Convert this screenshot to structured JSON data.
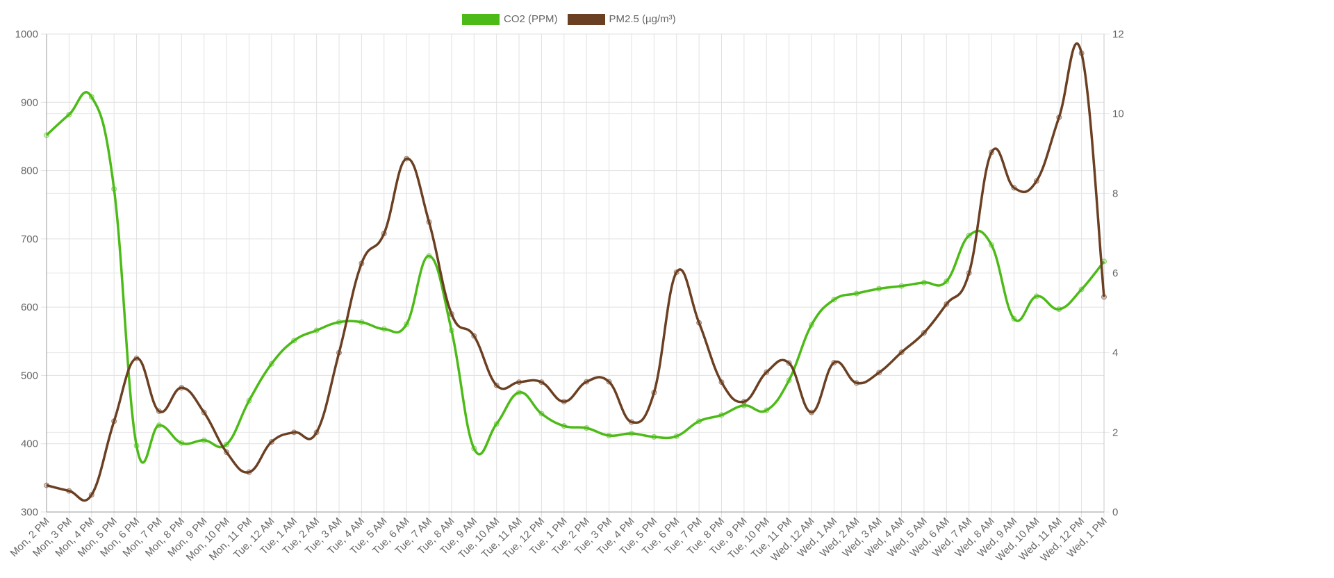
{
  "legend": {
    "items": [
      {
        "label": "CO2 (PPM)",
        "color": "#4cbb17"
      },
      {
        "label": "PM2.5 (µg/m³)",
        "color": "#6b3f22"
      }
    ]
  },
  "chart_data": {
    "type": "line",
    "title": "",
    "xlabel": "",
    "ylabel": "CO2 (PPM)",
    "y2label": "PM2.5 (µg/m³)",
    "ylim": [
      300,
      1000
    ],
    "y2lim": [
      0,
      12
    ],
    "yticks": [
      300,
      400,
      500,
      600,
      700,
      800,
      900,
      1000
    ],
    "y2ticks": [
      0,
      2,
      4,
      6,
      8,
      10,
      12
    ],
    "grid": true,
    "legend_position": "top",
    "categories": [
      "Mon, 2 PM",
      "Mon, 3 PM",
      "Mon, 4 PM",
      "Mon, 5 PM",
      "Mon, 6 PM",
      "Mon, 7 PM",
      "Mon, 8 PM",
      "Mon, 9 PM",
      "Mon, 10 PM",
      "Mon, 11 PM",
      "Tue, 12 AM",
      "Tue, 1 AM",
      "Tue, 2 AM",
      "Tue, 3 AM",
      "Tue, 4 AM",
      "Tue, 5 AM",
      "Tue, 6 AM",
      "Tue, 7 AM",
      "Tue, 8 AM",
      "Tue, 9 AM",
      "Tue, 10 AM",
      "Tue, 11 AM",
      "Tue, 12 PM",
      "Tue, 1 PM",
      "Tue, 2 PM",
      "Tue, 3 PM",
      "Tue, 4 PM",
      "Tue, 5 PM",
      "Tue, 6 PM",
      "Tue, 7 PM",
      "Tue, 8 PM",
      "Tue, 9 PM",
      "Tue, 10 PM",
      "Tue, 11 PM",
      "Wed, 12 AM",
      "Wed, 1 AM",
      "Wed, 2 AM",
      "Wed, 3 AM",
      "Wed, 4 AM",
      "Wed, 5 AM",
      "Wed, 6 AM",
      "Wed, 7 AM",
      "Wed, 8 AM",
      "Wed, 9 AM",
      "Wed, 10 AM",
      "Wed, 11 AM",
      "Wed, 12 PM",
      "Wed, 1 PM"
    ],
    "series": [
      {
        "name": "CO2 (PPM)",
        "axis": "left",
        "color": "#4cbb17",
        "values": [
          852,
          882,
          908,
          773,
          397,
          427,
          401,
          405,
          399,
          463,
          517,
          551,
          566,
          578,
          578,
          568,
          575,
          675,
          566,
          393,
          429,
          475,
          444,
          426,
          423,
          412,
          415,
          410,
          411,
          433,
          442,
          456,
          449,
          493,
          574,
          611,
          620,
          627,
          631,
          636,
          638,
          705,
          691,
          583,
          616,
          597,
          626,
          667
        ]
      },
      {
        "name": "PM2.5 (µg/m³)",
        "axis": "right",
        "color": "#6b3f22",
        "values": [
          0.67,
          0.53,
          0.43,
          2.28,
          3.86,
          2.53,
          3.12,
          2.5,
          1.5,
          1.0,
          1.76,
          2.0,
          2.0,
          4.0,
          6.24,
          6.99,
          8.87,
          7.28,
          4.97,
          4.42,
          3.18,
          3.26,
          3.26,
          2.77,
          3.27,
          3.27,
          2.26,
          3.0,
          6.02,
          4.75,
          3.26,
          2.77,
          3.51,
          3.74,
          2.5,
          3.75,
          3.24,
          3.5,
          4.01,
          4.5,
          5.22,
          6.0,
          9.03,
          8.14,
          8.31,
          9.91,
          11.52,
          5.4
        ]
      }
    ]
  }
}
